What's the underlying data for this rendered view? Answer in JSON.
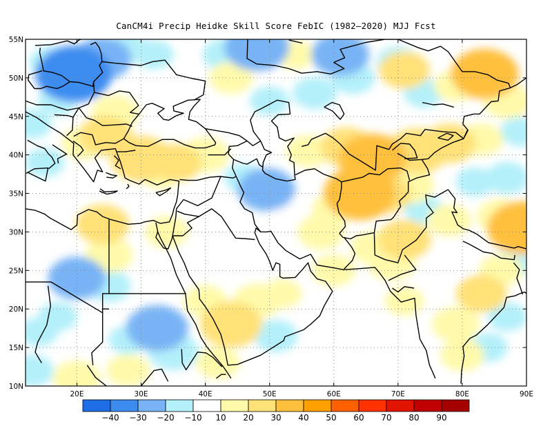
{
  "title": "CanCM4i Precip Heidke Skill Score FebIC (1982–2020) MJJ Fcst",
  "map": {
    "lon_range": [
      12,
      90
    ],
    "lat_range": [
      10,
      55
    ],
    "lat_ticks": [
      "10N",
      "15N",
      "20N",
      "25N",
      "30N",
      "35N",
      "40N",
      "45N",
      "50N",
      "55N"
    ],
    "lon_ticks": [
      "20E",
      "30E",
      "40E",
      "50E",
      "60E",
      "70E",
      "80E",
      "90E"
    ],
    "grid": "dotted"
  },
  "colorbar": {
    "colors": [
      "#1e6fe6",
      "#3c8cf0",
      "#78b4f5",
      "#b4f0fa",
      "#ffffff",
      "#fffaaa",
      "#ffe178",
      "#ffc03c",
      "#ffa000",
      "#ff6000",
      "#ff3200",
      "#e11400",
      "#c00000",
      "#a50000"
    ],
    "labels": [
      "−40",
      "−30",
      "−20",
      "−10",
      "10",
      "20",
      "30",
      "40",
      "50",
      "60",
      "70",
      "80",
      "90"
    ]
  },
  "fields": [
    {
      "lon": 19.5,
      "lat": 50.5,
      "value": -38
    },
    {
      "lon": 24,
      "lat": 52.5,
      "value": -25
    },
    {
      "lon": 16,
      "lat": 52,
      "value": -15
    },
    {
      "lon": 17,
      "lat": 47,
      "value": -12
    },
    {
      "lon": 48,
      "lat": 54,
      "value": -30
    },
    {
      "lon": 43,
      "lat": 53,
      "value": -15
    },
    {
      "lon": 32,
      "lat": 53,
      "value": -12
    },
    {
      "lon": 28,
      "lat": 54,
      "value": -12
    },
    {
      "lon": 61,
      "lat": 53,
      "value": -25
    },
    {
      "lon": 63,
      "lat": 50,
      "value": -15
    },
    {
      "lon": 57,
      "lat": 48,
      "value": -15
    },
    {
      "lon": 50,
      "lat": 47,
      "value": -12
    },
    {
      "lon": 70,
      "lat": 52,
      "value": -15
    },
    {
      "lon": 74,
      "lat": 48,
      "value": -12
    },
    {
      "lon": 44,
      "lat": 50,
      "value": 15
    },
    {
      "lon": 54,
      "lat": 53,
      "value": 12
    },
    {
      "lon": 83.5,
      "lat": 50.5,
      "value": 32
    },
    {
      "lon": 79,
      "lat": 49,
      "value": 15
    },
    {
      "lon": 71,
      "lat": 51,
      "value": 20
    },
    {
      "lon": 87,
      "lat": 47,
      "value": 18
    },
    {
      "lon": 24.5,
      "lat": 42.5,
      "value": 22
    },
    {
      "lon": 21,
      "lat": 41.5,
      "value": 15
    },
    {
      "lon": 30,
      "lat": 39.5,
      "value": 28
    },
    {
      "lon": 35.5,
      "lat": 39,
      "value": 20
    },
    {
      "lon": 40,
      "lat": 40,
      "value": 18
    },
    {
      "lon": 33,
      "lat": 37.5,
      "value": 12
    },
    {
      "lon": 66,
      "lat": 39.5,
      "value": 32
    },
    {
      "lon": 73,
      "lat": 40.5,
      "value": 28
    },
    {
      "lon": 62,
      "lat": 41,
      "value": 22
    },
    {
      "lon": 78,
      "lat": 41.5,
      "value": 22
    },
    {
      "lon": 83,
      "lat": 42,
      "value": 15
    },
    {
      "lon": 56,
      "lat": 40.5,
      "value": 15
    },
    {
      "lon": 64,
      "lat": 35,
      "value": 35
    },
    {
      "lon": 68,
      "lat": 35,
      "value": 22
    },
    {
      "lon": 72,
      "lat": 36,
      "value": 18
    },
    {
      "lon": 60,
      "lat": 33,
      "value": 15
    },
    {
      "lon": 58,
      "lat": 30,
      "value": 18
    },
    {
      "lon": 53,
      "lat": 33,
      "value": -10
    },
    {
      "lon": 49.5,
      "lat": 35.5,
      "value": -25
    },
    {
      "lon": 46,
      "lat": 37,
      "value": -12
    },
    {
      "lon": 55,
      "lat": 30.5,
      "value": -10
    },
    {
      "lon": 89.5,
      "lat": 30.5,
      "value": 35
    },
    {
      "lon": 86,
      "lat": 32,
      "value": 18
    },
    {
      "lon": 78,
      "lat": 31.5,
      "value": 15
    },
    {
      "lon": 83,
      "lat": 22,
      "value": 20
    },
    {
      "lon": 79,
      "lat": 18,
      "value": 18
    },
    {
      "lon": 86,
      "lat": 25,
      "value": 15
    },
    {
      "lon": 80,
      "lat": 14,
      "value": 15
    },
    {
      "lon": 84,
      "lat": 15,
      "value": -12
    },
    {
      "lon": 87,
      "lat": 19,
      "value": -12
    },
    {
      "lon": 88,
      "lat": 26,
      "value": -12
    },
    {
      "lon": 79,
      "lat": 26,
      "value": -10
    },
    {
      "lon": 74,
      "lat": 33,
      "value": -12
    },
    {
      "lon": 77,
      "lat": 35.5,
      "value": -10
    },
    {
      "lon": 24,
      "lat": 31,
      "value": 22
    },
    {
      "lon": 25,
      "lat": 27,
      "value": 18
    },
    {
      "lon": 34,
      "lat": 30,
      "value": 15
    },
    {
      "lon": 20,
      "lat": 24,
      "value": -25
    },
    {
      "lon": 25,
      "lat": 23,
      "value": -15
    },
    {
      "lon": 32.5,
      "lat": 17.5,
      "value": -28
    },
    {
      "lon": 35,
      "lat": 14.5,
      "value": -20
    },
    {
      "lon": 28,
      "lat": 16,
      "value": -12
    },
    {
      "lon": 17,
      "lat": 19,
      "value": -12
    },
    {
      "lon": 14,
      "lat": 17,
      "value": -12
    },
    {
      "lon": 13,
      "lat": 12,
      "value": -15
    },
    {
      "lon": 20,
      "lat": 11,
      "value": 18
    },
    {
      "lon": 28,
      "lat": 12,
      "value": 15
    },
    {
      "lon": 44,
      "lat": 18,
      "value": 28
    },
    {
      "lon": 48,
      "lat": 21,
      "value": 18
    },
    {
      "lon": 40,
      "lat": 21,
      "value": 15
    },
    {
      "lon": 51,
      "lat": 16.5,
      "value": -15
    },
    {
      "lon": 42,
      "lat": 13,
      "value": 15
    },
    {
      "lon": 46,
      "lat": 25.5,
      "value": -10
    },
    {
      "lon": 52,
      "lat": 22,
      "value": 12
    },
    {
      "lon": 60,
      "lat": 25,
      "value": 15
    },
    {
      "lon": 69,
      "lat": 26,
      "value": 18
    },
    {
      "lon": 71,
      "lat": 29,
      "value": 22
    },
    {
      "lon": 66,
      "lat": 28,
      "value": 15
    },
    {
      "lon": 71,
      "lat": 21,
      "value": 12
    },
    {
      "lon": 62,
      "lat": 20,
      "value": -10
    },
    {
      "lon": 58,
      "lat": 15,
      "value": -10
    },
    {
      "lon": 68,
      "lat": 15,
      "value": -10
    },
    {
      "lon": 87,
      "lat": 37,
      "value": -15
    },
    {
      "lon": 82,
      "lat": 36.5,
      "value": -12
    },
    {
      "lon": 89,
      "lat": 43,
      "value": -12
    },
    {
      "lon": 39,
      "lat": 46,
      "value": -10
    },
    {
      "lon": 30,
      "lat": 47,
      "value": -8
    },
    {
      "lon": 26,
      "lat": 45.5,
      "value": 18
    },
    {
      "lon": 13,
      "lat": 44,
      "value": -12
    },
    {
      "lon": 15,
      "lat": 39,
      "value": -12
    },
    {
      "lon": 35,
      "lat": 24,
      "value": -10
    },
    {
      "lon": 37,
      "lat": 27,
      "value": -10
    }
  ]
}
